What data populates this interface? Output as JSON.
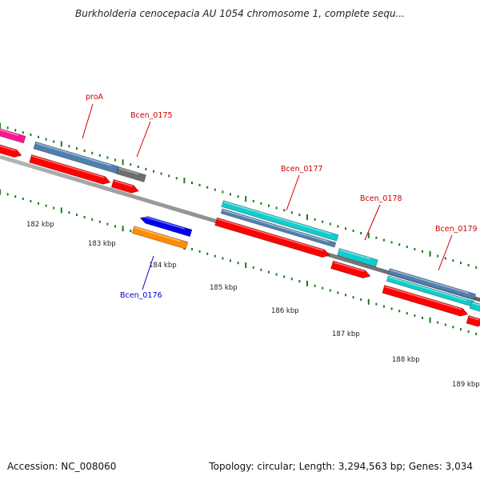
{
  "title": "Burkholderia cenocepacia AU 1054 chromosome 1, complete sequ...",
  "footer": {
    "accession": "Accession: NC_008060",
    "summary": "Topology: circular; Length: 3,294,563 bp; Genes: 3,034"
  },
  "colors": {
    "backbone": "#8a8a8a",
    "tick": "#1a7a1a",
    "tick_label": "#222222",
    "gene_label_forward": "#cc0000",
    "gene_label_reverse": "#0000cc",
    "pink": "#ff1493",
    "steelblue": "#4f7fb0",
    "red": "#ff0000",
    "gray": "#6e6e6e",
    "cyan": "#11cccc",
    "blue": "#0000ee",
    "orange": "#ff8c00"
  },
  "scale": {
    "labels": [
      "182 kbp",
      "183 kbp",
      "184 kbp",
      "185 kbp",
      "186 kbp",
      "187 kbp",
      "188 kbp",
      "189 kbp"
    ]
  },
  "gene_labels": [
    {
      "name": "proA",
      "strand": "forward"
    },
    {
      "name": "Bcen_0175",
      "strand": "forward"
    },
    {
      "name": "Bcen_0176",
      "strand": "reverse"
    },
    {
      "name": "Bcen_0177",
      "strand": "forward"
    },
    {
      "name": "Bcen_0178",
      "strand": "forward"
    },
    {
      "name": "Bcen_0179",
      "strand": "forward"
    }
  ]
}
